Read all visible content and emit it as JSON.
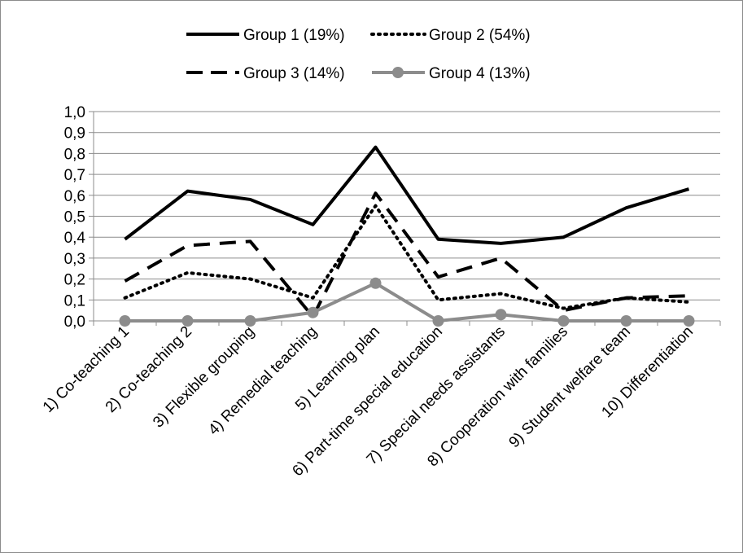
{
  "chart_data": {
    "type": "line",
    "title": "",
    "xlabel": "",
    "ylabel": "",
    "ylim": [
      0,
      1
    ],
    "ytick_step": 0.1,
    "ytick_labels": [
      "0,0",
      "0,1",
      "0,2",
      "0,3",
      "0,4",
      "0,5",
      "0,6",
      "0,7",
      "0,8",
      "0,9",
      "1,0"
    ],
    "grid": "horizontal",
    "legend_position": "top",
    "categories": [
      "1) Co-teaching 1",
      "2) Co-teaching 2",
      "3) Flexible grouping",
      "4) Remedial teaching",
      "5) Learning plan",
      "6) Part-time special education",
      "7) Special needs assistants",
      "8) Cooperation with families",
      "9) Student welfare team",
      "10) Differentiation"
    ],
    "series": [
      {
        "name": "Group 1 (19%)",
        "color": "#000000",
        "style": "solid",
        "marker": "none",
        "values": [
          0.39,
          0.62,
          0.58,
          0.46,
          0.83,
          0.39,
          0.37,
          0.4,
          0.54,
          0.63
        ]
      },
      {
        "name": "Group 2 (54%)",
        "color": "#000000",
        "style": "dotted",
        "marker": "none",
        "values": [
          0.11,
          0.23,
          0.2,
          0.11,
          0.55,
          0.1,
          0.13,
          0.06,
          0.11,
          0.09
        ]
      },
      {
        "name": "Group 3 (14%)",
        "color": "#000000",
        "style": "dashed",
        "marker": "none",
        "values": [
          0.19,
          0.36,
          0.38,
          0.02,
          0.61,
          0.21,
          0.3,
          0.05,
          0.11,
          0.12
        ]
      },
      {
        "name": "Group 4 (13%)",
        "color": "#8c8c8c",
        "style": "solid",
        "marker": "circle",
        "values": [
          0.0,
          0.0,
          0.0,
          0.04,
          0.18,
          0.0,
          0.03,
          0.0,
          0.0,
          0.0
        ]
      }
    ]
  }
}
